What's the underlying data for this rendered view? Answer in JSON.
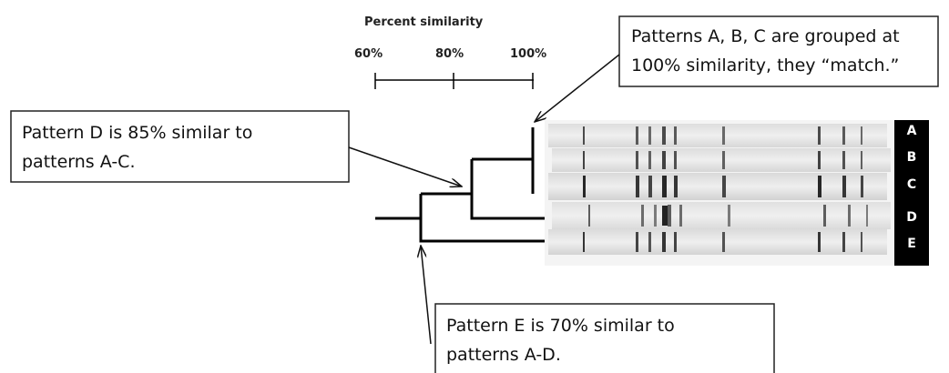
{
  "axis": {
    "title": "Percent similarity",
    "ticks": [
      "60%",
      "80%",
      "100%"
    ]
  },
  "callouts": [
    {
      "lines": [
        "Patterns A, B, C  are grouped at",
        "100% similarity, they “match.”"
      ]
    },
    {
      "lines": [
        "Pattern D is 85% similar to",
        "patterns A-C."
      ]
    },
    {
      "lines": [
        "Pattern E is 70% similar to",
        "patterns A-D."
      ]
    }
  ],
  "lanes": [
    "A",
    "B",
    "C",
    "D",
    "E"
  ]
}
